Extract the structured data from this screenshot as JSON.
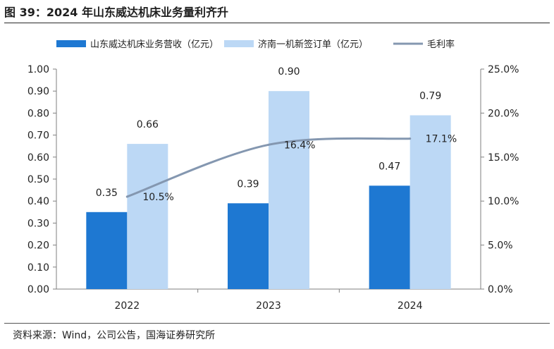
{
  "figure_title": "图 39：2024 年山东威达机床业务量利齐升",
  "source_text": "资料来源：Wind，公司公告，国海证券研究所",
  "colors": {
    "revenue": "#1e78d2",
    "orders": "#bcd8f5",
    "margin": "#8497b0",
    "axis": "#7f7f7f"
  },
  "chart_data": {
    "type": "bar",
    "categories": [
      "2022",
      "2023",
      "2024"
    ],
    "series": [
      {
        "name": "山东威达机床业务营收（亿元）",
        "kind": "bar",
        "axis": "left",
        "values": [
          0.35,
          0.39,
          0.47
        ],
        "labels": [
          "0.35",
          "0.39",
          "0.47"
        ]
      },
      {
        "name": "济南一机新签订单（亿元）",
        "kind": "bar",
        "axis": "left",
        "values": [
          0.66,
          0.9,
          0.79
        ],
        "labels": [
          "0.66",
          "0.90",
          "0.79"
        ]
      },
      {
        "name": "毛利率",
        "kind": "line",
        "axis": "right",
        "values": [
          10.5,
          16.4,
          17.1
        ],
        "labels": [
          "10.5%",
          "16.4%",
          "17.1%"
        ]
      }
    ],
    "y_left": {
      "ylim": [
        0,
        1.0
      ],
      "ticks": [
        "0.00",
        "0.10",
        "0.20",
        "0.30",
        "0.40",
        "0.50",
        "0.60",
        "0.70",
        "0.80",
        "0.90",
        "1.00"
      ]
    },
    "y_right": {
      "ylim": [
        0,
        25
      ],
      "ticks": [
        "0.0%",
        "5.0%",
        "10.0%",
        "15.0%",
        "20.0%",
        "25.0%"
      ]
    },
    "legend_position": "top",
    "grid": false
  }
}
